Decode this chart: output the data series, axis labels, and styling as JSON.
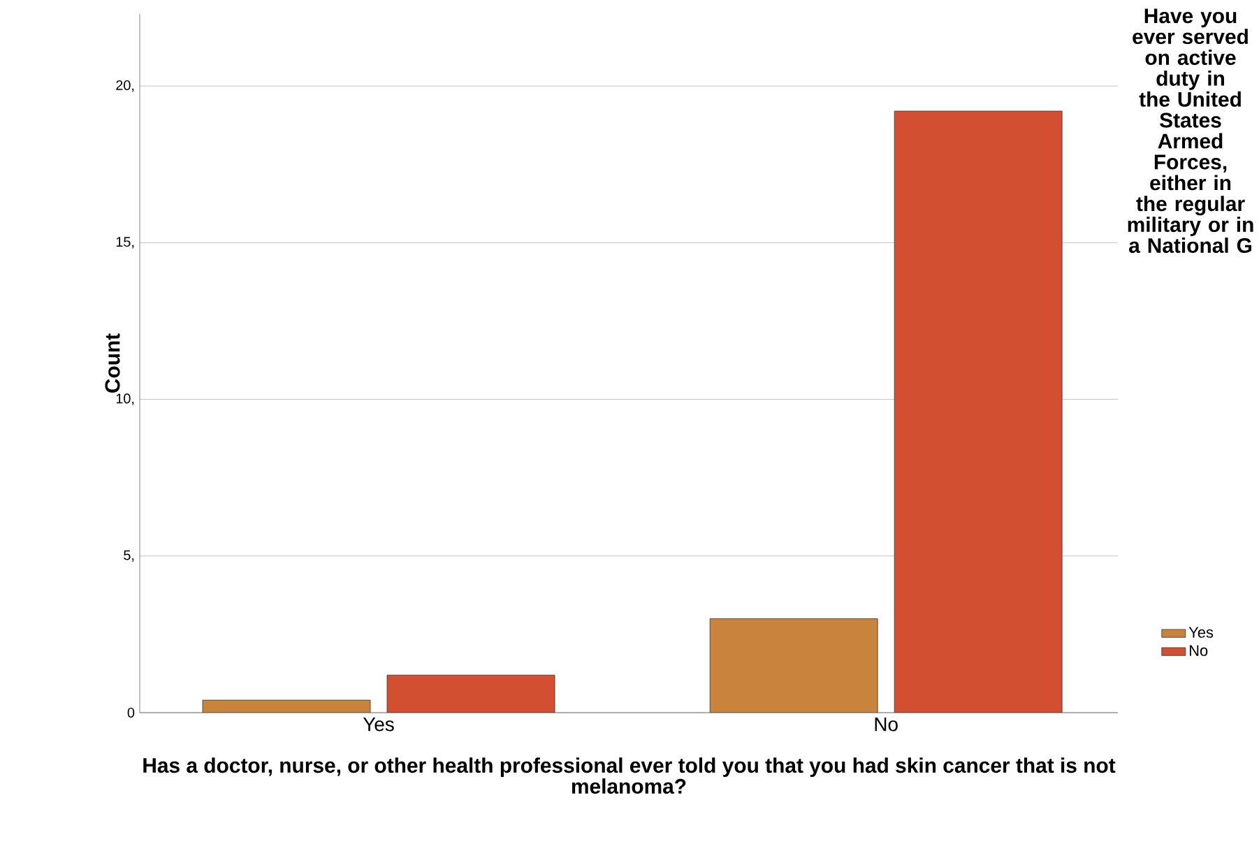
{
  "chart_data": {
    "type": "bar",
    "xlabel": "Has a doctor, nurse, or other health professional ever told you that you had skin cancer that is not melanoma?",
    "ylabel": "Count",
    "legend_title": "Have you ever served on active duty in the United States Armed Forces, either in the regular military or in a National G",
    "categories": [
      "Yes",
      "No"
    ],
    "series": [
      {
        "name": "Yes",
        "color": "#c8843c",
        "values": [
          0.4,
          3
        ]
      },
      {
        "name": "No",
        "color": "#d24f32",
        "values": [
          1.2,
          19.2
        ]
      }
    ],
    "ylim": [
      0,
      22.3
    ],
    "yticks": [
      0,
      {
        "value": 5,
        "label": "5,"
      },
      {
        "value": 10,
        "label": "10,"
      },
      {
        "value": 15,
        "label": "15,"
      },
      {
        "value": 20,
        "label": "20,"
      }
    ],
    "grid": "y",
    "legend": "right"
  }
}
